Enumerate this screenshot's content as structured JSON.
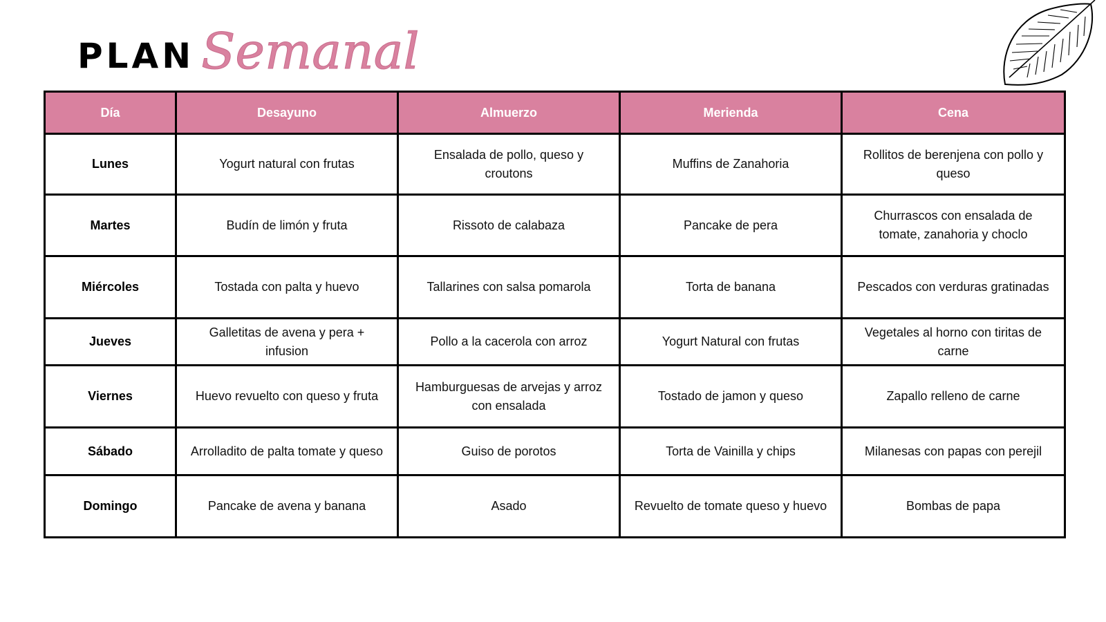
{
  "title": {
    "plan": "PLAN",
    "semanal": "Semanal"
  },
  "colors": {
    "header": "#d9819f",
    "border": "#000000"
  },
  "decoration": "leaf-illustration",
  "table": {
    "headers": [
      "Día",
      "Desayuno",
      "Almuerzo",
      "Merienda",
      "Cena"
    ],
    "rows": [
      [
        "Lunes",
        "Yogurt natural con frutas",
        "Ensalada de pollo, queso y croutons",
        "Muffins de Zanahoria",
        "Rollitos de berenjena con pollo y queso"
      ],
      [
        "Martes",
        "Budín de limón y fruta",
        "Rissoto de calabaza",
        "Pancake de pera",
        "Churrascos con ensalada de tomate, zanahoria y choclo"
      ],
      [
        "Miércoles",
        "Tostada con palta y huevo",
        "Tallarines con salsa pomarola",
        "Torta de banana",
        "Pescados con verduras gratinadas"
      ],
      [
        "Jueves",
        "Galletitas de avena y pera + infusion",
        "Pollo a la cacerola con arroz",
        "Yogurt Natural con frutas",
        "Vegetales al horno con tiritas de carne"
      ],
      [
        "Viernes",
        "Huevo revuelto con queso y fruta",
        "Hamburguesas de arvejas y arroz con ensalada",
        "Tostado de jamon y queso",
        "Zapallo relleno de carne"
      ],
      [
        "Sábado",
        "Arrolladito de palta tomate y queso",
        "Guiso de porotos",
        "Torta de Vainilla y chips",
        "Milanesas con papas con perejil"
      ],
      [
        "Domingo",
        "Pancake  de avena y banana",
        "Asado",
        "Revuelto de tomate queso y huevo",
        "Bombas de papa"
      ]
    ]
  }
}
